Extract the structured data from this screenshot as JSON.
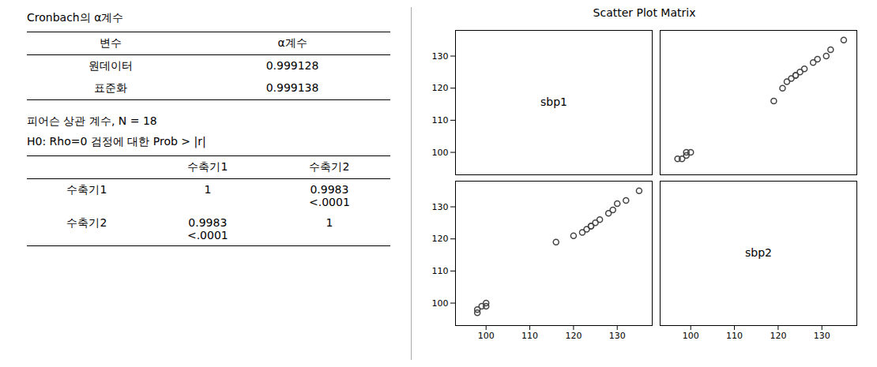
{
  "chart_data": [
    {
      "type": "table",
      "title": "Cronbach의 α계수",
      "columns": [
        "변수",
        "α계수"
      ],
      "rows": [
        [
          "원데이터",
          "0.999128"
        ],
        [
          "표준화",
          "0.999138"
        ]
      ]
    },
    {
      "type": "table",
      "title": "피어슨 상관 계수, N = 18",
      "subtitle": "H0: Rho=0 검정에 대한 Prob > |r|",
      "columns": [
        "수축기1",
        "수축기2"
      ],
      "rows": [
        {
          "label": "수축기1",
          "cells": [
            [
              "1"
            ],
            [
              "0.9983",
              "<.0001"
            ]
          ]
        },
        {
          "label": "수축기2",
          "cells": [
            [
              "0.9983",
              "<.0001"
            ],
            [
              "1"
            ]
          ]
        }
      ]
    },
    {
      "type": "scatter_matrix",
      "title": "Scatter Plot Matrix",
      "variables": [
        {
          "name": "sbp1",
          "values": [
            98,
            98,
            99,
            100,
            100,
            116,
            120,
            122,
            123,
            124,
            124,
            125,
            126,
            128,
            129,
            130,
            132,
            135
          ]
        },
        {
          "name": "sbp2",
          "values": [
            97,
            98,
            99,
            99,
            100,
            119,
            121,
            122,
            123,
            124,
            124,
            125,
            126,
            128,
            129,
            131,
            132,
            135
          ]
        }
      ],
      "xlim": [
        93,
        138
      ],
      "ylim": [
        93,
        138
      ],
      "xticks": [
        100,
        110,
        120,
        130
      ],
      "yticks": [
        100,
        110,
        120,
        130
      ],
      "color": "#444444",
      "marker": "circle",
      "grid": false
    }
  ]
}
